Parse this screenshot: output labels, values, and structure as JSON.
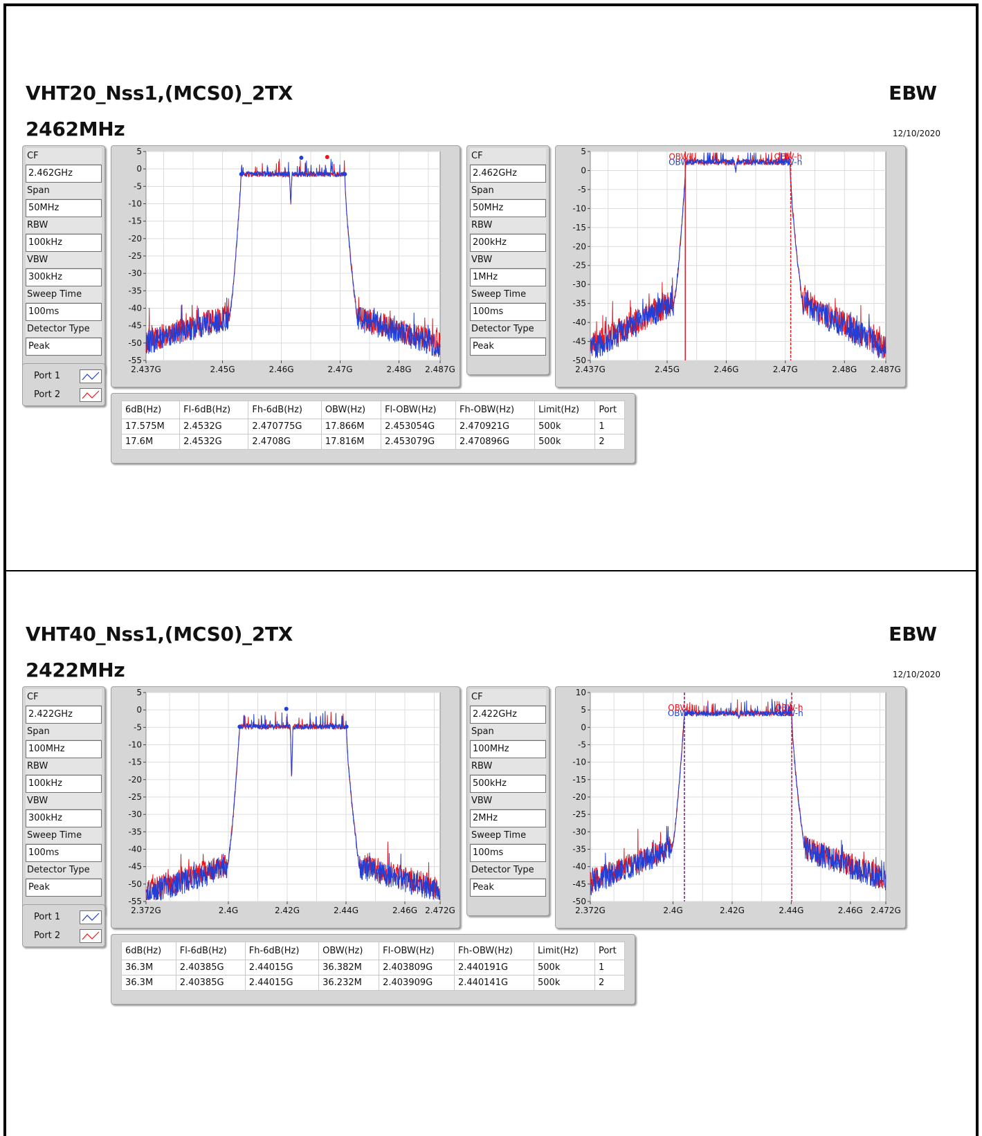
{
  "sections": [
    {
      "title": "VHT20_Nss1,(MCS0)_2TX",
      "freq": "2462MHz",
      "ebw": "EBW",
      "date": "12/10/2020",
      "params_left": [
        {
          "label": "CF",
          "value": "2.462GHz"
        },
        {
          "label": "Span",
          "value": "50MHz"
        },
        {
          "label": "RBW",
          "value": "100kHz"
        },
        {
          "label": "VBW",
          "value": "300kHz"
        },
        {
          "label": "Sweep Time",
          "value": "100ms"
        },
        {
          "label": "Detector Type",
          "value": "Peak"
        }
      ],
      "params_right": [
        {
          "label": "CF",
          "value": "2.462GHz"
        },
        {
          "label": "Span",
          "value": "50MHz"
        },
        {
          "label": "RBW",
          "value": "200kHz"
        },
        {
          "label": "VBW",
          "value": "1MHz"
        },
        {
          "label": "Sweep Time",
          "value": "100ms"
        },
        {
          "label": "Detector Type",
          "value": "Peak"
        }
      ],
      "ports": [
        "Port 1",
        "Port 2"
      ],
      "table": {
        "headers": [
          "6dB(Hz)",
          "Fl-6dB(Hz)",
          "Fh-6dB(Hz)",
          "OBW(Hz)",
          "Fl-OBW(Hz)",
          "Fh-OBW(Hz)",
          "Limit(Hz)",
          "Port"
        ],
        "rows": [
          [
            "17.575M",
            "2.4532G",
            "2.470775G",
            "17.866M",
            "2.453054G",
            "2.470921G",
            "500k",
            "1"
          ],
          [
            "17.6M",
            "2.4532G",
            "2.4708G",
            "17.816M",
            "2.453079G",
            "2.470896G",
            "500k",
            "2"
          ]
        ]
      }
    },
    {
      "title": "VHT40_Nss1,(MCS0)_2TX",
      "freq": "2422MHz",
      "ebw": "EBW",
      "date": "12/10/2020",
      "params_left": [
        {
          "label": "CF",
          "value": "2.422GHz"
        },
        {
          "label": "Span",
          "value": "100MHz"
        },
        {
          "label": "RBW",
          "value": "100kHz"
        },
        {
          "label": "VBW",
          "value": "300kHz"
        },
        {
          "label": "Sweep Time",
          "value": "100ms"
        },
        {
          "label": "Detector Type",
          "value": "Peak"
        }
      ],
      "params_right": [
        {
          "label": "CF",
          "value": "2.422GHz"
        },
        {
          "label": "Span",
          "value": "100MHz"
        },
        {
          "label": "RBW",
          "value": "500kHz"
        },
        {
          "label": "VBW",
          "value": "2MHz"
        },
        {
          "label": "Sweep Time",
          "value": "100ms"
        },
        {
          "label": "Detector Type",
          "value": "Peak"
        }
      ],
      "ports": [
        "Port 1",
        "Port 2"
      ],
      "table": {
        "headers": [
          "6dB(Hz)",
          "Fl-6dB(Hz)",
          "Fh-6dB(Hz)",
          "OBW(Hz)",
          "Fl-OBW(Hz)",
          "Fh-OBW(Hz)",
          "Limit(Hz)",
          "Port"
        ],
        "rows": [
          [
            "36.3M",
            "2.40385G",
            "2.44015G",
            "36.382M",
            "2.403809G",
            "2.440191G",
            "500k",
            "1"
          ],
          [
            "36.3M",
            "2.40385G",
            "2.44015G",
            "36.232M",
            "2.403909G",
            "2.440141G",
            "500k",
            "2"
          ]
        ]
      }
    }
  ],
  "colors": {
    "port1": "#1f3fd6",
    "port2": "#e8161c",
    "grid": "#dcdcdc"
  },
  "chart_data": [
    {
      "type": "line",
      "xmin": 2.437,
      "xmax": 2.487,
      "xticks": [
        2.437,
        2.45,
        2.46,
        2.47,
        2.48,
        2.487
      ],
      "xtick_labels": [
        "2.437G",
        "2.45G",
        "2.46G",
        "2.47G",
        "2.48G",
        "2.487G"
      ],
      "ymin": -55,
      "ymax": 5,
      "yticks": [
        5,
        0,
        -5,
        -10,
        -15,
        -20,
        -25,
        -30,
        -35,
        -40,
        -45,
        -50,
        -55
      ],
      "top": -1.5,
      "edge_l": 2.4532,
      "edge_h": 2.4708,
      "notch": 2.4616,
      "notch_depth": -9,
      "floor_start": -50,
      "floor_end": -51,
      "shoulder": -43,
      "series": [
        {
          "name": "Port 1"
        },
        {
          "name": "Port 2"
        }
      ],
      "markers": [
        {
          "x": 2.4532,
          "y": -1.5,
          "color": "port1"
        },
        {
          "x": 2.4708,
          "y": -1.5,
          "color": "port1"
        },
        {
          "x": 2.4634,
          "y": 3.2,
          "color": "port1"
        },
        {
          "x": 2.4678,
          "y": 3.4,
          "color": "port2"
        }
      ],
      "obw_lines": []
    },
    {
      "type": "line",
      "xmin": 2.437,
      "xmax": 2.487,
      "xticks": [
        2.437,
        2.45,
        2.46,
        2.47,
        2.48,
        2.487
      ],
      "xtick_labels": [
        "2.437G",
        "2.45G",
        "2.46G",
        "2.47G",
        "2.48G",
        "2.487G"
      ],
      "ymin": -50,
      "ymax": 5,
      "yticks": [
        5,
        0,
        -5,
        -10,
        -15,
        -20,
        -25,
        -30,
        -35,
        -40,
        -45,
        -50
      ],
      "top": 2.2,
      "edge_l": 2.4532,
      "edge_h": 2.4708,
      "notch": 2.4616,
      "notch_depth": -2.5,
      "floor_start": -47,
      "floor_end": -47,
      "shoulder": -35,
      "series": [
        {
          "name": "Port 1"
        },
        {
          "name": "Port 2"
        }
      ],
      "markers": [],
      "obw_lines": [
        {
          "x": 2.453054,
          "color": "port1",
          "label": "OBW-l",
          "dash": false
        },
        {
          "x": 2.453079,
          "color": "port2",
          "label": "OBW-l",
          "dash": false
        },
        {
          "x": 2.470921,
          "color": "port1",
          "label": "OBW-h",
          "dash": true
        },
        {
          "x": 2.470896,
          "color": "port2",
          "label": "OBW-h",
          "dash": true
        }
      ]
    },
    {
      "type": "line",
      "xmin": 2.372,
      "xmax": 2.472,
      "xticks": [
        2.372,
        2.4,
        2.42,
        2.44,
        2.46,
        2.472
      ],
      "xtick_labels": [
        "2.372G",
        "2.4G",
        "2.42G",
        "2.44G",
        "2.46G",
        "2.472G"
      ],
      "ymin": -55,
      "ymax": 5,
      "yticks": [
        5,
        0,
        -5,
        -10,
        -15,
        -20,
        -25,
        -30,
        -35,
        -40,
        -45,
        -50,
        -55
      ],
      "top": -4.8,
      "edge_l": 2.40385,
      "edge_h": 2.44015,
      "notch": 2.4215,
      "notch_depth": -16,
      "floor_start": -53,
      "floor_end": -52,
      "shoulder": -45,
      "series": [
        {
          "name": "Port 1"
        },
        {
          "name": "Port 2"
        }
      ],
      "markers": [
        {
          "x": 2.40385,
          "y": -4.8,
          "color": "port1"
        },
        {
          "x": 2.44015,
          "y": -4.8,
          "color": "port1"
        },
        {
          "x": 2.4197,
          "y": 0.3,
          "color": "port1"
        }
      ],
      "obw_lines": []
    },
    {
      "type": "line",
      "xmin": 2.372,
      "xmax": 2.472,
      "xticks": [
        2.372,
        2.4,
        2.42,
        2.44,
        2.46,
        2.472
      ],
      "xtick_labels": [
        "2.372G",
        "2.4G",
        "2.42G",
        "2.44G",
        "2.46G",
        "2.472G"
      ],
      "ymin": -50,
      "ymax": 10,
      "yticks": [
        10,
        5,
        0,
        -5,
        -10,
        -15,
        -20,
        -25,
        -30,
        -35,
        -40,
        -45,
        -50
      ],
      "top": 4,
      "edge_l": 2.40385,
      "edge_h": 2.44015,
      "notch": 2.4223,
      "notch_depth": -1.5,
      "floor_start": -45,
      "floor_end": -44,
      "shoulder": -35,
      "series": [
        {
          "name": "Port 1"
        },
        {
          "name": "Port 2"
        }
      ],
      "markers": [],
      "obw_lines": [
        {
          "x": 2.403809,
          "color": "port1",
          "label": "OBW-l",
          "dash": true
        },
        {
          "x": 2.403909,
          "color": "port2",
          "label": "OBW-l",
          "dash": true
        },
        {
          "x": 2.440191,
          "color": "port1",
          "label": "OBW-h",
          "dash": true
        },
        {
          "x": 2.440141,
          "color": "port2",
          "label": "OBW-h",
          "dash": true
        }
      ]
    }
  ]
}
